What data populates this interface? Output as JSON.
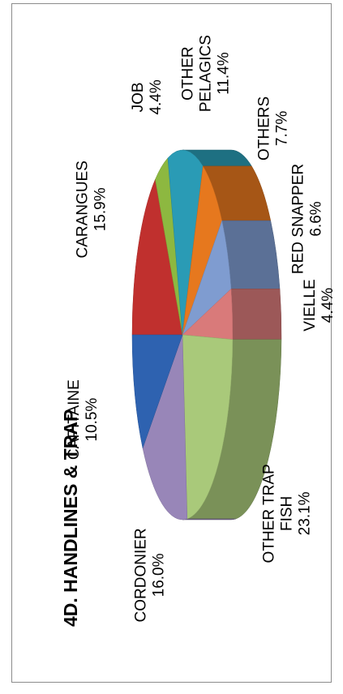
{
  "chart_data": {
    "type": "pie",
    "title": "4D. HANDLINES & TRAP",
    "slices": [
      {
        "label_lines": [
          "CARANGUES"
        ],
        "value_text": "15.9%",
        "value": 15.9,
        "color": "#c0302e"
      },
      {
        "label_lines": [
          "JOB"
        ],
        "value_text": "4.4%",
        "value": 4.4,
        "color": "#8db840"
      },
      {
        "label_lines": [
          "OTHER",
          "PELAGICS"
        ],
        "value_text": "11.4%",
        "value": 11.4,
        "color": "#2a9bb5"
      },
      {
        "label_lines": [
          "OTHERS"
        ],
        "value_text": "7.7%",
        "value": 7.7,
        "color": "#e6781e"
      },
      {
        "label_lines": [
          "RED SNAPPER"
        ],
        "value_text": "6.6%",
        "value": 6.6,
        "color": "#7f9cd0"
      },
      {
        "label_lines": [
          "VIELLE"
        ],
        "value_text": "4.4%",
        "value": 4.4,
        "color": "#d97a7a"
      },
      {
        "label_lines": [
          "OTHER TRAP",
          "FISH"
        ],
        "value_text": "23.1%",
        "value": 23.1,
        "color": "#a9c97a"
      },
      {
        "label_lines": [
          "CORDONIER"
        ],
        "value_text": "16.0%",
        "value": 16.0,
        "color": "#9886b8"
      },
      {
        "label_lines": [
          "CAPITAINE"
        ],
        "value_text": "10.5%",
        "value": 10.5,
        "color": "#2e62b0"
      }
    ]
  }
}
